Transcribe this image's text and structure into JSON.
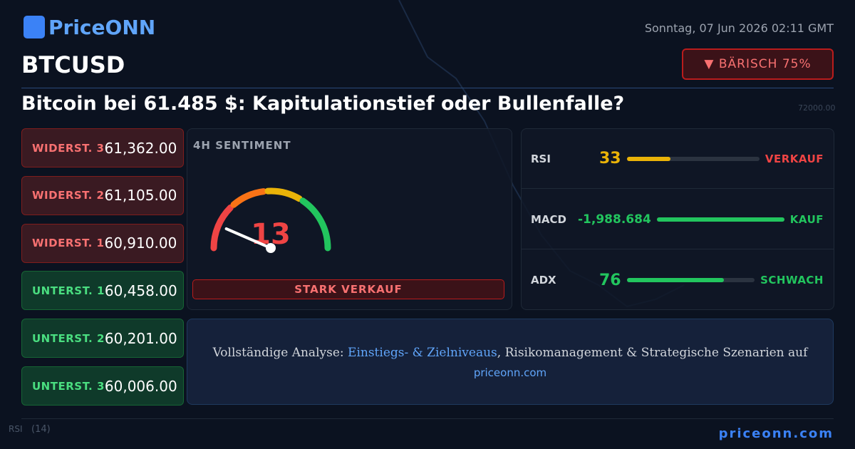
{
  "header": {
    "logo": "PriceONN",
    "date": "Sonntag, 07 Jun 2026 02:11 GMT",
    "symbol": "BTCUSD",
    "badge": "▼ BÄRISCH 75%",
    "headline": "Bitcoin bei 61.485 $: Kapitulationstief oder Bullenfalle?"
  },
  "levels": [
    {
      "label": "WIDERST. 3",
      "value": "61,362.00",
      "color": "#f87171"
    },
    {
      "label": "WIDERST. 2",
      "value": "61,105.00",
      "color": "#f87171"
    },
    {
      "label": "WIDERST. 1",
      "value": "60,910.00",
      "color": "#f87171"
    },
    {
      "label": "UNTERST. 1",
      "value": "60,458.00",
      "color": "#4ade80"
    },
    {
      "label": "UNTERST. 2",
      "value": "60,201.00",
      "color": "#4ade80"
    },
    {
      "label": "UNTERST. 3",
      "value": "60,006.00",
      "color": "#4ade80"
    }
  ],
  "sentiment": {
    "title": "4H SENTIMENT",
    "value": 13,
    "verdict": "STARK VERKAUF"
  },
  "indicators": [
    {
      "name": "RSI",
      "value": 33,
      "signal": "VERKAUF",
      "color": "#eab308",
      "signal_color": "#ef4444"
    },
    {
      "name": "MACD",
      "value": "-1,988.684",
      "signal": "KAUF",
      "color": "#22c55e",
      "signal_color": "#22c55e"
    },
    {
      "name": "ADX",
      "value": 76,
      "signal": "SCHWACH",
      "color": "#22c55e",
      "signal_color": "#22c55e"
    }
  ],
  "cta": {
    "prefix": "Vollständige Analyse: ",
    "link": "Einstiegs- & Zielniveaus",
    "suffix": ", Risikomanagement & Strategische Szenarien auf",
    "url": "priceonn.com"
  },
  "footer": {
    "url": "priceonn.com"
  },
  "background": {
    "labels": [
      "72000.00",
      "RSI",
      "(14)"
    ]
  }
}
